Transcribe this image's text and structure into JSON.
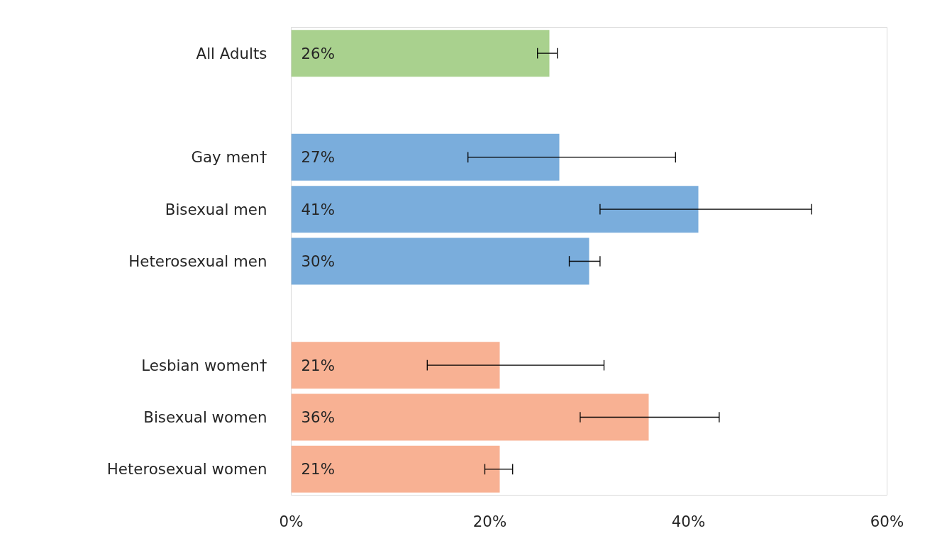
{
  "chart_data": {
    "type": "bar",
    "orientation": "horizontal",
    "categories": [
      "All Adults",
      null,
      "Gay men†",
      "Bisexual men",
      "Heterosexual men",
      null,
      "Lesbian women†",
      "Bisexual women",
      "Heterosexual women"
    ],
    "values": [
      26,
      null,
      27,
      41,
      30,
      null,
      21,
      36,
      21
    ],
    "value_labels": [
      "26%",
      null,
      "27%",
      "41%",
      "30%",
      null,
      "21%",
      "36%",
      "21%"
    ],
    "colors": [
      "#a9d18e",
      null,
      "#7aaddc",
      "#7aaddc",
      "#7aaddc",
      null,
      "#f8b193",
      "#f8b193",
      "#f8b193"
    ],
    "errors": [
      [
        24.8,
        26.8
      ],
      null,
      [
        17.8,
        38.7
      ],
      [
        31.1,
        52.4
      ],
      [
        28.0,
        31.1
      ],
      null,
      [
        13.7,
        31.5
      ],
      [
        29.1,
        43.1
      ],
      [
        19.5,
        22.3
      ]
    ],
    "xlim": [
      0,
      60
    ],
    "xticks": [
      {
        "value": 0,
        "label": "0%"
      },
      {
        "value": 20,
        "label": "20%"
      },
      {
        "value": 40,
        "label": "40%"
      },
      {
        "value": 60,
        "label": "60%"
      }
    ],
    "grid": false
  }
}
